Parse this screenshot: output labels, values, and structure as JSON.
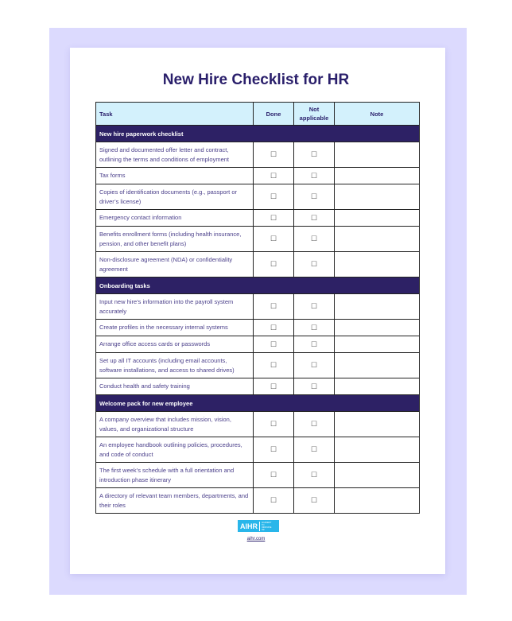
{
  "title": "New Hire Checklist for HR",
  "headers": {
    "task": "Task",
    "done": "Done",
    "na": "Not applicable",
    "note": "Note"
  },
  "checkbox": "☐",
  "sections": [
    {
      "title": "New hire paperwork checklist",
      "items": [
        "Signed and documented offer letter and contract, outlining the terms and conditions of employment",
        "Tax forms",
        "Copies of identification documents (e.g., passport or driver’s license)",
        "Emergency contact information",
        "Benefits enrollment forms (including health insurance, pension, and other benefit plans)",
        "Non-disclosure agreement (NDA) or confidentiality agreement"
      ]
    },
    {
      "title": "Onboarding tasks",
      "items": [
        "Input new hire’s information into the payroll system accurately",
        "Create profiles in the necessary internal systems",
        "Arrange office access cards or passwords",
        "Set up all IT accounts (including email accounts, software installations, and access to shared drives)",
        "Conduct health and safety training"
      ]
    },
    {
      "title": "Welcome pack for new employee",
      "items": [
        "A company overview that includes mission, vision, values, and organizational structure",
        "An employee handbook outlining policies, procedures, and code of conduct",
        "The first week’s schedule with a full orientation and introduction phase itinerary",
        "A directory of relevant team members, departments, and their roles"
      ]
    }
  ],
  "footer": {
    "logo_text": "AIHR",
    "logo_sub": "ACADEMY TO INNOVATE HR",
    "link": "aihr.com"
  },
  "colors": {
    "navy": "#2d2165",
    "header_bg": "#d3f1fc",
    "logo": "#29b6ea",
    "background": "#dcdafe"
  }
}
